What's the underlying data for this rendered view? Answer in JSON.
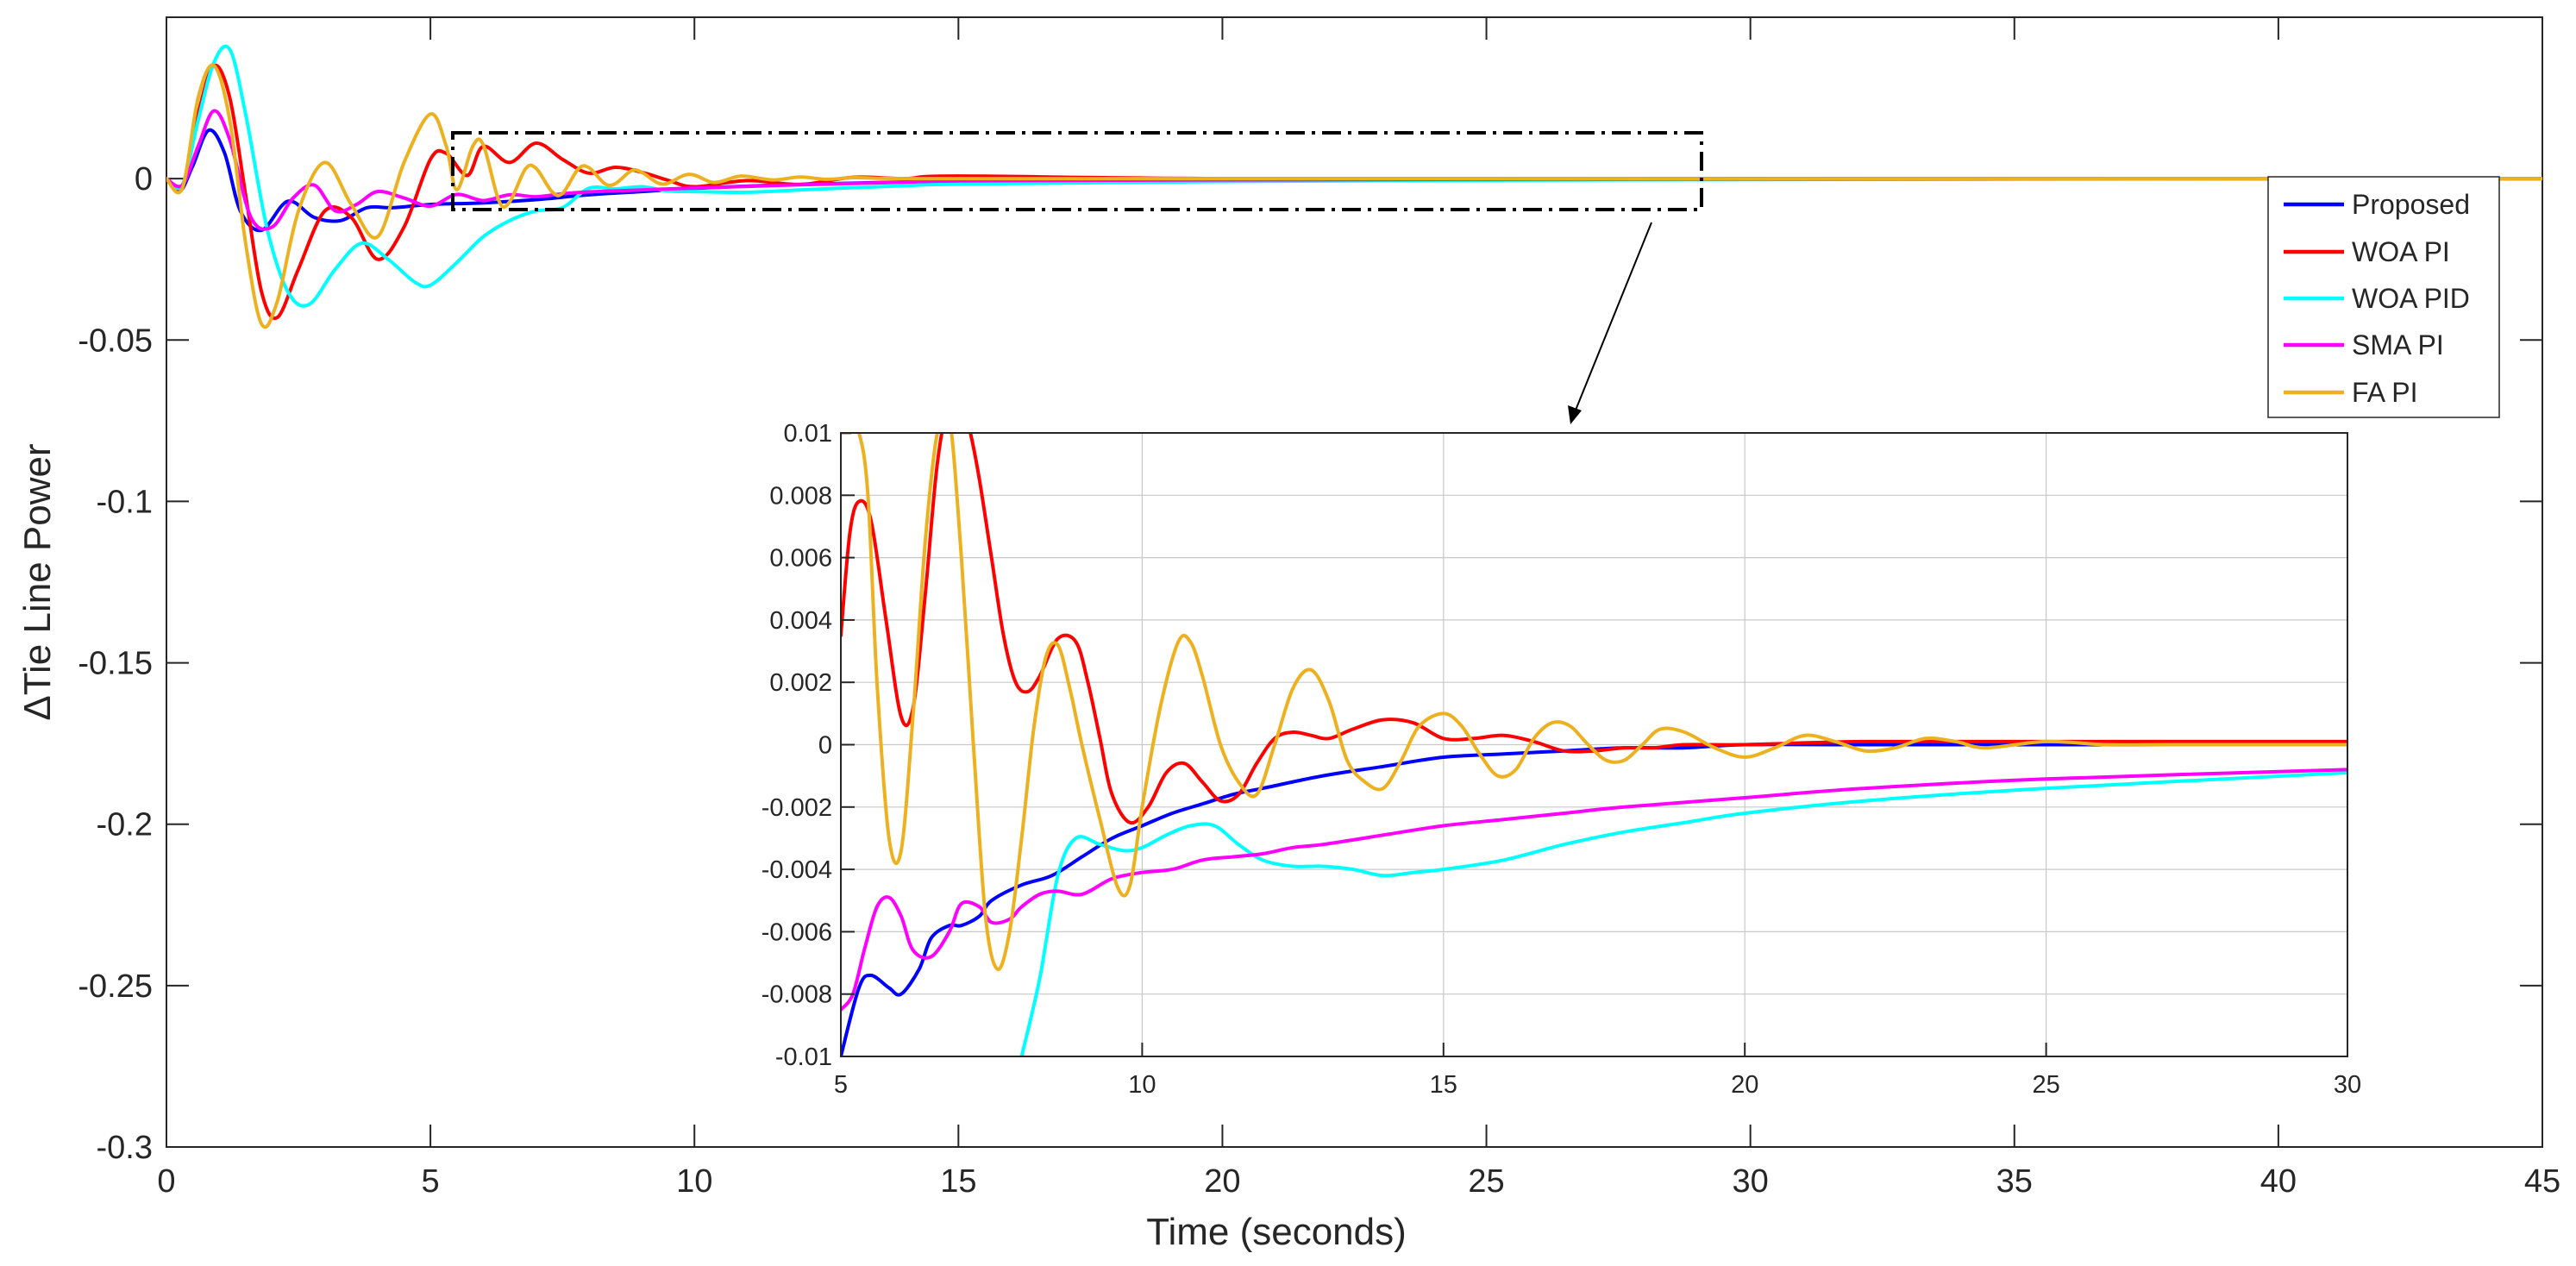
{
  "chart_data": [
    {
      "type": "line",
      "title": "",
      "xlabel": "Time (seconds)",
      "ylabel": "ΔTie Line Power",
      "xlim": [
        0,
        45
      ],
      "ylim": [
        -0.3,
        0.05
      ],
      "xticks": [
        0,
        5,
        10,
        15,
        20,
        25,
        30,
        35,
        40,
        45
      ],
      "yticks": [
        0,
        -0.05,
        -0.1,
        -0.15,
        -0.2,
        -0.25,
        -0.3
      ],
      "xtick_labels": [
        "0",
        "5",
        "10",
        "15",
        "20",
        "25",
        "30",
        "35",
        "40",
        "45"
      ],
      "ytick_labels": [
        "0",
        "-0.05",
        "-0.1",
        "-0.15",
        "-0.2",
        "-0.25",
        "-0.3"
      ],
      "grid": false,
      "legend": "top-right",
      "series": [
        {
          "name": "Proposed",
          "color": "#0000ff",
          "x": [
            0,
            0.25,
            0.5,
            0.8,
            1.1,
            1.4,
            1.8,
            2.3,
            2.8,
            3.3,
            3.8,
            4.3,
            5,
            6,
            7,
            8,
            9,
            10,
            12,
            15,
            20,
            25,
            30,
            40,
            45
          ],
          "y": [
            0,
            -0.004,
            0.004,
            0.015,
            0.008,
            -0.01,
            -0.016,
            -0.007,
            -0.012,
            -0.013,
            -0.009,
            -0.009,
            -0.008,
            -0.0075,
            -0.0065,
            -0.005,
            -0.004,
            -0.003,
            -0.0018,
            -0.0008,
            -0.0002,
            -0.0001,
            0,
            0,
            0
          ]
        },
        {
          "name": "WOA PI",
          "color": "#ff0000",
          "x": [
            0,
            0.3,
            0.6,
            0.9,
            1.2,
            1.5,
            1.8,
            2.1,
            2.5,
            3,
            3.5,
            4,
            4.5,
            5,
            5.3,
            5.7,
            6,
            6.5,
            7,
            7.5,
            8,
            8.5,
            9,
            9.5,
            10,
            11,
            12,
            13,
            14,
            15,
            20,
            30,
            45
          ],
          "y": [
            0,
            -0.003,
            0.02,
            0.035,
            0.025,
            -0.005,
            -0.035,
            -0.043,
            -0.028,
            -0.01,
            -0.012,
            -0.025,
            -0.015,
            0.006,
            0.0078,
            0.001,
            0.01,
            0.005,
            0.011,
            0.006,
            0.0017,
            0.0035,
            0.002,
            -0.0005,
            -0.0025,
            -0.0006,
            -0.0018,
            0.0004,
            0,
            0.0008,
            0,
            0,
            0
          ]
        },
        {
          "name": "WOA PID",
          "color": "#00ffff",
          "x": [
            0,
            0.3,
            0.6,
            0.9,
            1.2,
            1.5,
            1.9,
            2.3,
            2.7,
            3.2,
            3.7,
            4.2,
            4.7,
            5,
            5.5,
            6,
            6.5,
            7,
            7.5,
            8,
            8.5,
            9,
            9.5,
            10,
            11,
            12,
            13,
            14,
            15,
            20,
            25,
            30,
            40,
            45
          ],
          "y": [
            0,
            -0.002,
            0.018,
            0.036,
            0.04,
            0.02,
            -0.015,
            -0.035,
            -0.039,
            -0.028,
            -0.02,
            -0.025,
            -0.032,
            -0.033,
            -0.026,
            -0.018,
            -0.013,
            -0.01,
            -0.009,
            -0.003,
            -0.0032,
            -0.0025,
            -0.0038,
            -0.004,
            -0.0042,
            -0.0035,
            -0.0028,
            -0.0022,
            -0.0017,
            -0.0009,
            -0.0005,
            -0.0003,
            0,
            0
          ]
        },
        {
          "name": "SMA PI",
          "color": "#ff00ff",
          "x": [
            0,
            0.3,
            0.6,
            0.9,
            1.2,
            1.6,
            2,
            2.4,
            2.8,
            3.2,
            3.6,
            4,
            4.5,
            5,
            5.5,
            6,
            6.5,
            7,
            7.5,
            8,
            9,
            10,
            11,
            12,
            13,
            14,
            15,
            20,
            25,
            30,
            40,
            45
          ],
          "y": [
            0,
            -0.002,
            0.01,
            0.021,
            0.012,
            -0.012,
            -0.015,
            -0.006,
            -0.002,
            -0.01,
            -0.008,
            -0.004,
            -0.006,
            -0.0085,
            -0.0049,
            -0.0068,
            -0.005,
            -0.0056,
            -0.0047,
            -0.0041,
            -0.0035,
            -0.0029,
            -0.0024,
            -0.0019,
            -0.0015,
            -0.0011,
            -0.0007,
            -0.0004,
            -0.0002,
            -0.0001,
            0,
            0
          ]
        },
        {
          "name": "FA PI",
          "color": "#edb120",
          "x": [
            0,
            0.3,
            0.6,
            0.9,
            1.2,
            1.5,
            1.8,
            2.1,
            2.5,
            3,
            3.5,
            4,
            4.5,
            5,
            5.3,
            5.5,
            5.8,
            6,
            6.3,
            6.5,
            6.8,
            7,
            7.3,
            7.5,
            7.8,
            8,
            8.3,
            8.5,
            8.8,
            9,
            9.3,
            9.5,
            9.8,
            10,
            10.3,
            10.5,
            10.8,
            11,
            11.5,
            12,
            12.5,
            13,
            13.5,
            14,
            15,
            20,
            30,
            45
          ],
          "y": [
            0,
            -0.003,
            0.025,
            0.035,
            0.018,
            -0.02,
            -0.045,
            -0.038,
            -0.01,
            0.005,
            -0.008,
            -0.018,
            0.005,
            0.02,
            0.01,
            -0.0034,
            0.01,
            0.0105,
            -0.007,
            -0.0072,
            0.003,
            0.0032,
            -0.004,
            -0.0046,
            0.003,
            0.0034,
            -0.0015,
            -0.0016,
            0.0024,
            0.002,
            -0.0013,
            -0.0014,
            0.001,
            0.0011,
            -0.001,
            -0.0009,
            0.0006,
            0.0007,
            -0.0004,
            0.0005,
            -0.0002,
            0.0003,
            0.0001,
            0,
            0,
            0,
            0,
            0
          ]
        }
      ]
    },
    {
      "type": "line",
      "title": "",
      "xlabel": "",
      "ylabel": "",
      "xlim": [
        5,
        30
      ],
      "ylim": [
        -0.01,
        0.01
      ],
      "xticks": [
        5,
        10,
        15,
        20,
        25,
        30
      ],
      "yticks": [
        0.01,
        0.008,
        0.006,
        0.004,
        0.002,
        0,
        -0.002,
        -0.004,
        -0.006,
        -0.008,
        -0.01
      ],
      "xtick_labels": [
        "5",
        "10",
        "15",
        "20",
        "25",
        "30"
      ],
      "ytick_labels": [
        "0.01",
        "0.008",
        "0.006",
        "0.004",
        "0.002",
        "0",
        "-0.002",
        "-0.004",
        "-0.006",
        "-0.008",
        "-0.01"
      ],
      "grid": true,
      "series": [
        {
          "name": "Proposed",
          "color": "#0000ff",
          "x": [
            5,
            5.3,
            5.5,
            5.8,
            6,
            6.3,
            6.5,
            6.8,
            7,
            7.3,
            7.5,
            8,
            8.5,
            9,
            9.5,
            10,
            10.5,
            11,
            11.5,
            12,
            13,
            14,
            15,
            16,
            17,
            18,
            19,
            20,
            22,
            25,
            30
          ],
          "y": [
            -0.01,
            -0.0078,
            -0.0074,
            -0.0078,
            -0.008,
            -0.0072,
            -0.0062,
            -0.0058,
            -0.0058,
            -0.0055,
            -0.005,
            -0.0045,
            -0.0042,
            -0.0036,
            -0.003,
            -0.0026,
            -0.0022,
            -0.0019,
            -0.0016,
            -0.0014,
            -0.001,
            -0.0007,
            -0.0004,
            -0.0003,
            -0.0002,
            -0.0001,
            -0.0001,
            0,
            0,
            0,
            0
          ]
        },
        {
          "name": "WOA PI",
          "color": "#ff0000",
          "x": [
            5,
            5.15,
            5.3,
            5.5,
            5.75,
            6,
            6.2,
            6.4,
            6.6,
            6.8,
            7,
            7.15,
            7.3,
            7.5,
            7.7,
            7.9,
            8.1,
            8.3,
            8.6,
            8.9,
            9.1,
            9.3,
            9.5,
            9.8,
            10.1,
            10.4,
            10.7,
            11,
            11.3,
            11.6,
            11.9,
            12.2,
            12.5,
            12.8,
            13.1,
            13.5,
            14,
            14.5,
            15,
            15.5,
            16,
            16.5,
            17,
            17.5,
            18,
            18.5,
            19,
            20,
            22,
            25,
            30
          ],
          "y": [
            0.0035,
            0.0068,
            0.0078,
            0.0072,
            0.004,
            0.0009,
            0.0012,
            0.0048,
            0.009,
            0.011,
            0.011,
            0.01,
            0.0085,
            0.006,
            0.0035,
            0.002,
            0.0017,
            0.0022,
            0.0034,
            0.0033,
            0.002,
            0.0002,
            -0.0016,
            -0.0025,
            -0.002,
            -0.0009,
            -0.0006,
            -0.0012,
            -0.0018,
            -0.0016,
            -0.0006,
            0.0002,
            0.0004,
            0.0003,
            0.0002,
            0.0005,
            0.0008,
            0.0007,
            0.0002,
            0.0002,
            0.0003,
            0.0001,
            -0.0002,
            -0.0002,
            -0.0001,
            -0.0001,
            0,
            0,
            0.0001,
            0.0001,
            0.0001
          ]
        },
        {
          "name": "WOA PID",
          "color": "#00ffff",
          "x": [
            8,
            8.3,
            8.6,
            8.9,
            9.3,
            9.7,
            10,
            10.4,
            10.8,
            11.2,
            11.6,
            12,
            12.5,
            13,
            13.5,
            14,
            14.5,
            15,
            16,
            17,
            18,
            19,
            20,
            22,
            25,
            30
          ],
          "y": [
            -0.01,
            -0.0075,
            -0.0042,
            -0.003,
            -0.0032,
            -0.0034,
            -0.0033,
            -0.0029,
            -0.0026,
            -0.0026,
            -0.0032,
            -0.0037,
            -0.0039,
            -0.0039,
            -0.004,
            -0.0042,
            -0.0041,
            -0.004,
            -0.0037,
            -0.0032,
            -0.0028,
            -0.0025,
            -0.0022,
            -0.0018,
            -0.0014,
            -0.0009
          ]
        },
        {
          "name": "SMA PI",
          "color": "#ff00ff",
          "x": [
            5,
            5.2,
            5.4,
            5.6,
            5.8,
            6,
            6.2,
            6.5,
            6.8,
            7,
            7.3,
            7.5,
            7.8,
            8,
            8.3,
            8.6,
            9,
            9.5,
            10,
            10.5,
            11,
            11.5,
            12,
            12.5,
            13,
            14,
            15,
            16,
            17,
            18,
            20,
            22,
            25,
            30
          ],
          "y": [
            -0.0085,
            -0.008,
            -0.0065,
            -0.0052,
            -0.0049,
            -0.0055,
            -0.0066,
            -0.0068,
            -0.006,
            -0.0051,
            -0.0052,
            -0.0057,
            -0.0056,
            -0.0052,
            -0.0048,
            -0.0047,
            -0.0048,
            -0.0043,
            -0.0041,
            -0.004,
            -0.0037,
            -0.0036,
            -0.0035,
            -0.0033,
            -0.0032,
            -0.0029,
            -0.0026,
            -0.0024,
            -0.0022,
            -0.002,
            -0.0017,
            -0.0014,
            -0.0011,
            -0.0008
          ]
        },
        {
          "name": "FA PI",
          "color": "#edb120",
          "x": [
            5,
            5.15,
            5.3,
            5.45,
            5.6,
            5.8,
            6,
            6.2,
            6.4,
            6.6,
            6.8,
            7,
            7.2,
            7.4,
            7.6,
            7.8,
            8,
            8.2,
            8.4,
            8.6,
            8.8,
            9,
            9.3,
            9.6,
            9.8,
            10,
            10.3,
            10.6,
            10.8,
            11,
            11.3,
            11.6,
            11.9,
            12.2,
            12.5,
            12.8,
            13.1,
            13.4,
            13.7,
            14,
            14.3,
            14.6,
            15,
            15.3,
            15.6,
            15.9,
            16.2,
            16.5,
            16.8,
            17.1,
            17.4,
            17.7,
            18,
            18.3,
            18.6,
            19,
            19.5,
            20,
            20.5,
            21,
            21.5,
            22,
            22.5,
            23,
            23.5,
            24,
            25,
            26,
            27,
            28,
            30
          ],
          "y": [
            0.01,
            0.01,
            0.01,
            0.008,
            0.002,
            -0.003,
            -0.0034,
            0.001,
            0.0065,
            0.01,
            0.0105,
            0.006,
            0.0,
            -0.0055,
            -0.0072,
            -0.006,
            -0.003,
            0.0005,
            0.0028,
            0.0032,
            0.0018,
            0.0,
            -0.0024,
            -0.0046,
            -0.0045,
            -0.002,
            0.0012,
            0.0033,
            0.0033,
            0.0022,
            0.0,
            -0.0012,
            -0.0016,
            0.0,
            0.0018,
            0.0024,
            0.0014,
            -0.0005,
            -0.0012,
            -0.0014,
            -0.0005,
            0.0006,
            0.001,
            0.0006,
            -0.0003,
            -0.001,
            -0.0008,
            0.0002,
            0.0007,
            0.0006,
            0.0,
            -0.0005,
            -0.0005,
            0.0,
            0.0005,
            0.0004,
            -0.0001,
            -0.0004,
            -0.0001,
            0.0003,
            0.0001,
            -0.0002,
            -0.0001,
            0.0002,
            0.0001,
            -0.0001,
            0.0001,
            0.0,
            0.0,
            0.0,
            0.0
          ]
        }
      ]
    }
  ]
}
